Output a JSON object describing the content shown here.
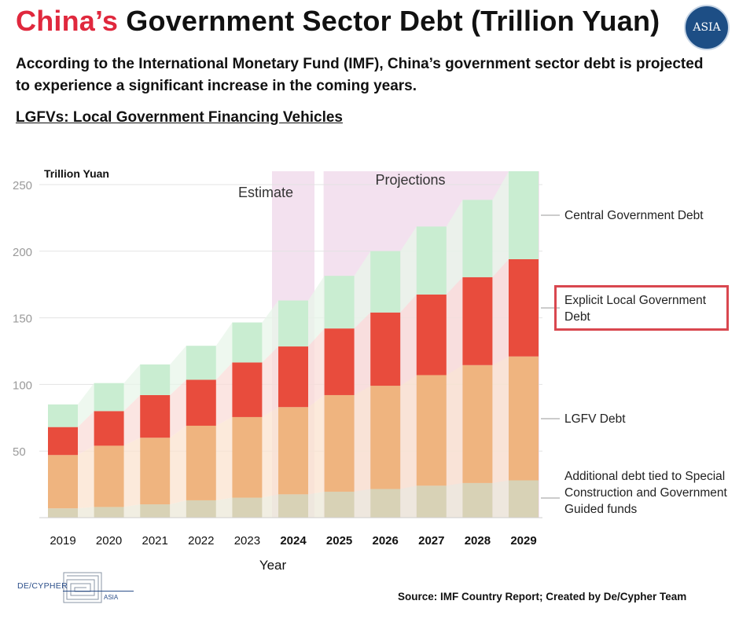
{
  "header": {
    "title_accent": "China’s",
    "title_rest": "Government Sector Debt (Trillion Yuan)",
    "badge": "ASIA",
    "subtitle": "According to the International Monetary Fund (IMF), China’s government sector debt is projected to experience a significant increase in the coming years.",
    "note": "LGFVs: Local Government Financing Vehicles "
  },
  "chart_data": {
    "type": "bar",
    "stacked": true,
    "title": "China’s Government Sector Debt (Trillion Yuan)",
    "ylabel": "Trillion Yuan",
    "xlabel": "Year",
    "ylim": [
      0,
      260
    ],
    "yticks": [
      50,
      100,
      150,
      200,
      250
    ],
    "categories": [
      "2019",
      "2020",
      "2021",
      "2022",
      "2023",
      "2024",
      "2025",
      "2026",
      "2027",
      "2028",
      "2029"
    ],
    "bold_categories": [
      "2024",
      "2025",
      "2026",
      "2027",
      "2028",
      "2029"
    ],
    "series": [
      {
        "name": "Additional debt tied to Special Construction and Government Guided funds",
        "color": "#d8d2b6",
        "values": [
          7,
          8,
          10,
          13,
          15,
          17.5,
          19.5,
          21.5,
          24,
          26,
          28
        ]
      },
      {
        "name": "LGFV Debt",
        "color": "#efb47f",
        "values": [
          40,
          46,
          50,
          56,
          60.5,
          65.5,
          72.5,
          77.5,
          83,
          88.5,
          93
        ]
      },
      {
        "name": "Explicit Local Government Debt",
        "color": "#e84c3d",
        "values": [
          21,
          26,
          32,
          34.5,
          41,
          45.5,
          50,
          55,
          60.5,
          66,
          73
        ]
      },
      {
        "name": "Central Government Debt",
        "color": "#c9edd1",
        "values": [
          17,
          21,
          23,
          25.5,
          30,
          34.5,
          39.5,
          46,
          51,
          58,
          66
        ]
      }
    ],
    "annotations": [
      {
        "text": "Estimate",
        "category": "2024"
      },
      {
        "text": "Projections",
        "category": "2025-2029"
      }
    ]
  },
  "legend": {
    "central": "Central Government Debt",
    "explicit": "Explicit Local Government Debt",
    "lgfv": "LGFV Debt",
    "additional": "Additional debt tied to Special Construction and Government Guided funds"
  },
  "footer": {
    "logo_text": "DE/CYPHER",
    "logo_sub": "ASIA",
    "source": "Source: IMF Country Report; Created by De/Cypher Team"
  }
}
